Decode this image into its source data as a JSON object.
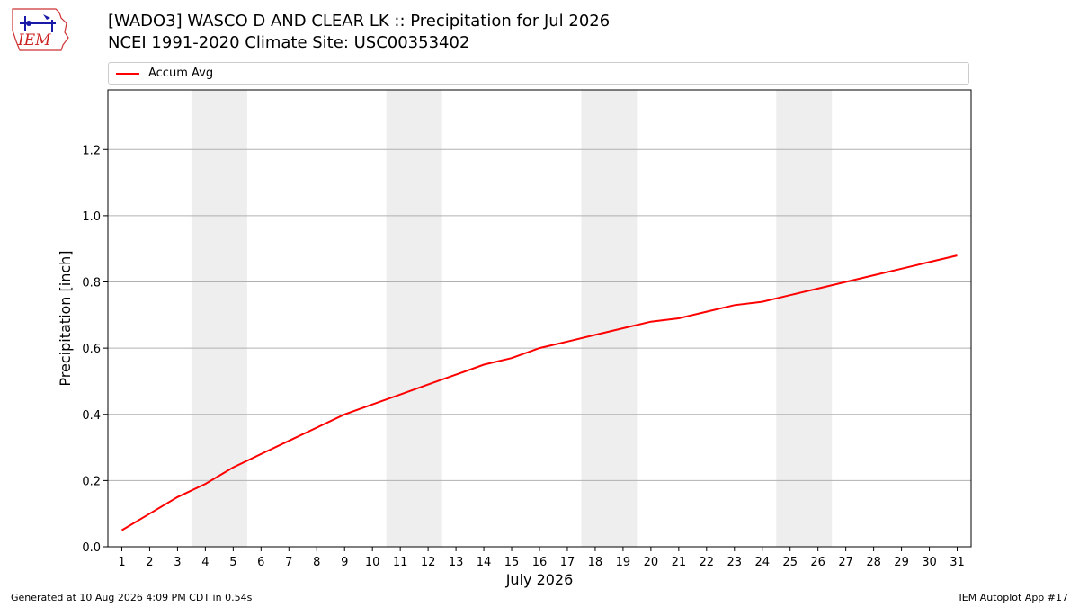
{
  "header": {
    "logo_text": "IEM",
    "title_line1": "[WADO3] WASCO D AND CLEAR LK :: Precipitation for Jul 2026",
    "title_line2": "NCEI 1991-2020 Climate Site: USC00353402"
  },
  "legend": {
    "entries": [
      "Accum Avg"
    ],
    "line_color": "#ff0000"
  },
  "chart_data": {
    "type": "line",
    "xlabel": "July 2026",
    "ylabel": "Precipitation [inch]",
    "x": [
      1,
      2,
      3,
      4,
      5,
      6,
      7,
      8,
      9,
      10,
      11,
      12,
      13,
      14,
      15,
      16,
      17,
      18,
      19,
      20,
      21,
      22,
      23,
      24,
      25,
      26,
      27,
      28,
      29,
      30,
      31
    ],
    "x_tick_labels": [
      "1",
      "2",
      "3",
      "4",
      "5",
      "6",
      "7",
      "8",
      "9",
      "10",
      "11",
      "12",
      "13",
      "14",
      "15",
      "16",
      "17",
      "18",
      "19",
      "20",
      "21",
      "22",
      "23",
      "24",
      "25",
      "26",
      "27",
      "28",
      "29",
      "30",
      "31"
    ],
    "y_tick_labels": [
      "0.0",
      "0.2",
      "0.4",
      "0.6",
      "0.8",
      "1.0",
      "1.2"
    ],
    "y_ticks": [
      0.0,
      0.2,
      0.4,
      0.6,
      0.8,
      1.0,
      1.2
    ],
    "ylim": [
      0,
      1.38
    ],
    "xlim": [
      0.5,
      31.5
    ],
    "grid": "horizontal",
    "weekend_shading": [
      [
        3.5,
        5.5
      ],
      [
        10.5,
        12.5
      ],
      [
        17.5,
        19.5
      ],
      [
        24.5,
        26.5
      ]
    ],
    "series": [
      {
        "name": "Accum Avg",
        "color": "#ff0000",
        "values": [
          0.05,
          0.1,
          0.15,
          0.19,
          0.24,
          0.28,
          0.32,
          0.36,
          0.4,
          0.43,
          0.46,
          0.49,
          0.52,
          0.55,
          0.57,
          0.6,
          0.62,
          0.64,
          0.66,
          0.68,
          0.69,
          0.71,
          0.73,
          0.74,
          0.76,
          0.78,
          0.8,
          0.82,
          0.84,
          0.86,
          0.88
        ]
      }
    ]
  },
  "footer": {
    "generated": "Generated at 10 Aug 2026 4:09 PM CDT in 0.54s",
    "app": "IEM Autoplot App #17"
  }
}
